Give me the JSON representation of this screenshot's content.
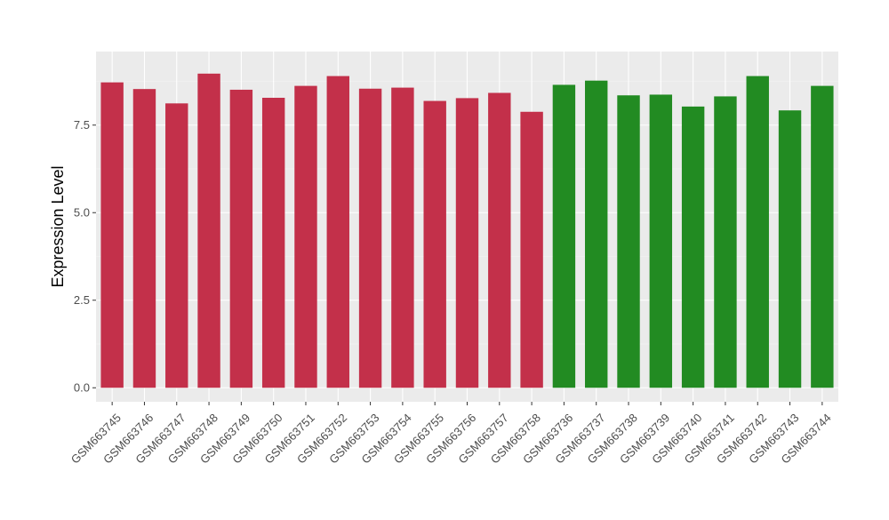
{
  "chart_data": {
    "type": "bar",
    "title": "",
    "xlabel": "",
    "ylabel": "Expression Level",
    "ylim": [
      -0.4,
      9.6
    ],
    "yticks": [
      0.0,
      2.5,
      5.0,
      7.5
    ],
    "ytick_labels": [
      "0.0",
      "2.5",
      "5.0",
      "7.5"
    ],
    "grid": true,
    "legend": "none",
    "categories": [
      "GSM663745",
      "GSM663746",
      "GSM663747",
      "GSM663748",
      "GSM663749",
      "GSM663750",
      "GSM663751",
      "GSM663752",
      "GSM663753",
      "GSM663754",
      "GSM663755",
      "GSM663756",
      "GSM663757",
      "GSM663758",
      "GSM663736",
      "GSM663737",
      "GSM663738",
      "GSM663739",
      "GSM663740",
      "GSM663741",
      "GSM663742",
      "GSM663743",
      "GSM663744"
    ],
    "values": [
      8.72,
      8.53,
      8.12,
      8.97,
      8.51,
      8.28,
      8.62,
      8.9,
      8.54,
      8.57,
      8.19,
      8.27,
      8.42,
      7.88,
      8.65,
      8.77,
      8.35,
      8.37,
      8.03,
      8.32,
      8.9,
      7.92,
      8.62
    ],
    "bar_colors": [
      "#c3304a",
      "#c3304a",
      "#c3304a",
      "#c3304a",
      "#c3304a",
      "#c3304a",
      "#c3304a",
      "#c3304a",
      "#c3304a",
      "#c3304a",
      "#c3304a",
      "#c3304a",
      "#c3304a",
      "#c3304a",
      "#228b22",
      "#228b22",
      "#228b22",
      "#228b22",
      "#228b22",
      "#228b22",
      "#228b22",
      "#228b22",
      "#228b22"
    ]
  },
  "colors": {
    "panel_background": "#ebebeb",
    "grid_major": "#ffffff",
    "grid_minor": "#f5f5f5",
    "axis_text": "#4d4d4d",
    "axis_title": "#000000"
  }
}
